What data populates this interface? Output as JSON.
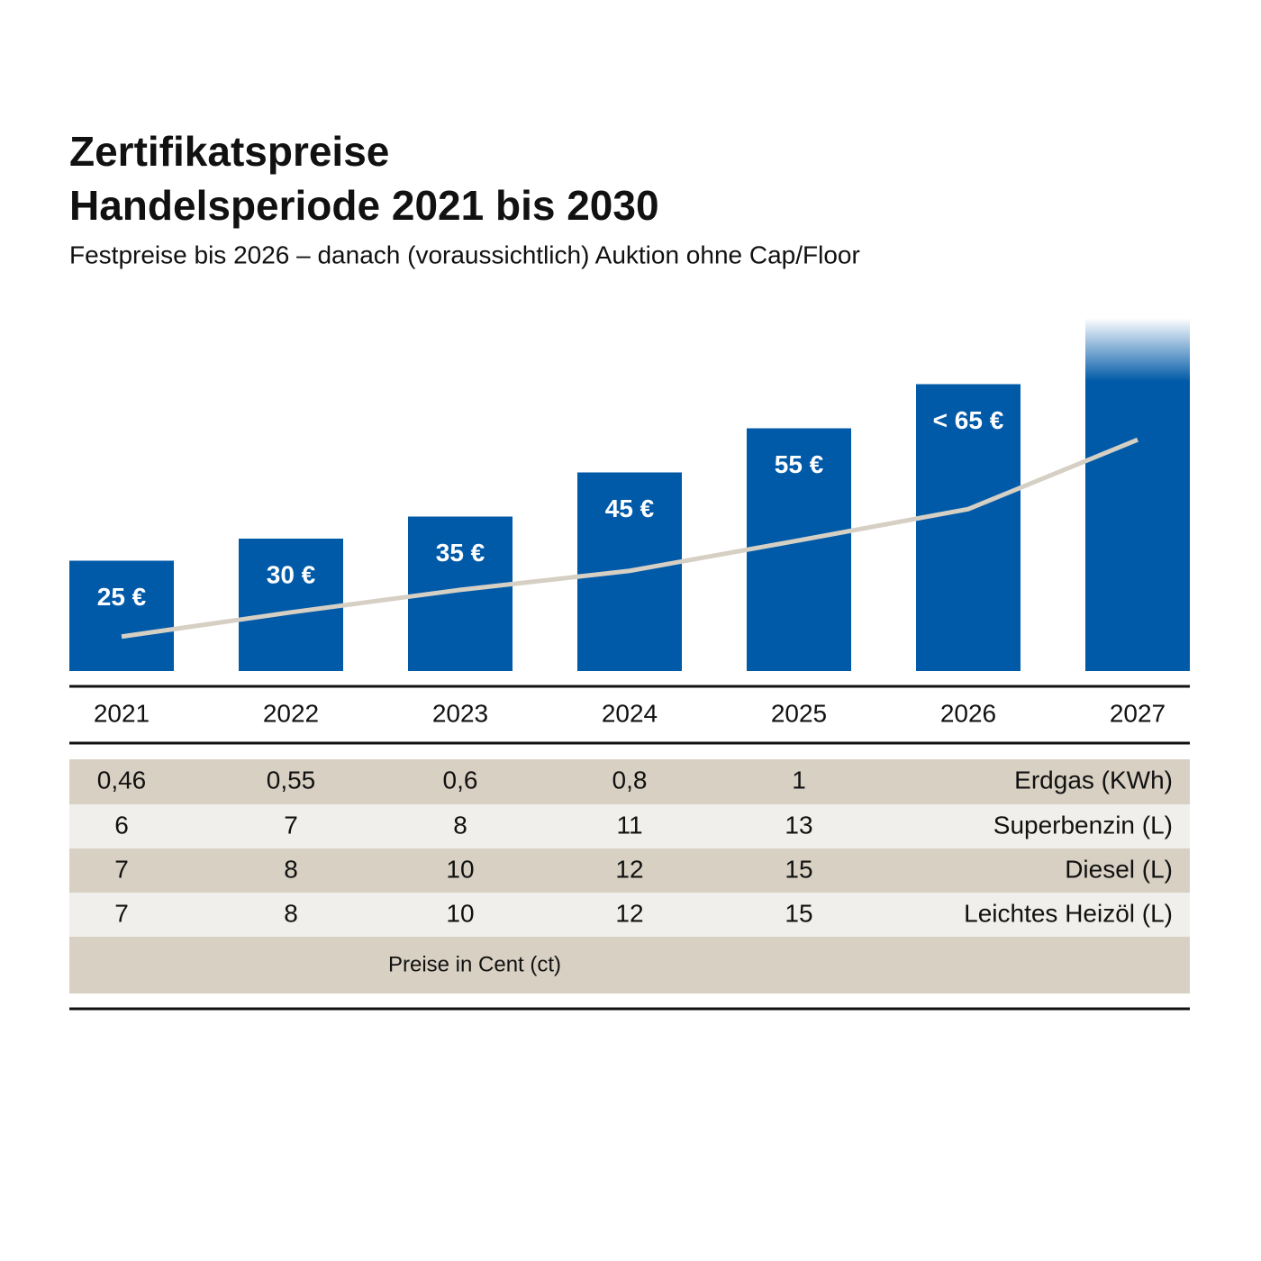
{
  "chart_data": {
    "type": "bar",
    "title": [
      "Zertifikatspreise",
      "Handelsperiode 2021 bis 2030"
    ],
    "subtitle": "Festpreise bis 2026 – danach (voraussichtlich) Auktion ohne Cap/Floor",
    "categories": [
      "2021",
      "2022",
      "2023",
      "2024",
      "2025",
      "2026",
      "2027"
    ],
    "values": [
      25,
      30,
      35,
      45,
      55,
      65,
      80
    ],
    "value_labels": [
      "25 €",
      "30 €",
      "35 €",
      "45 €",
      "55 €",
      "< 65 €",
      null
    ],
    "color": "#005aa8",
    "ylim": [
      0,
      80
    ],
    "overlay": {
      "type": "line",
      "color": "#d6cfc4",
      "values": [
        7.8,
        13.3,
        18.4,
        22.7,
        29.6,
        36.7,
        52.4
      ]
    }
  },
  "table": {
    "rows": [
      {
        "label": "Erdgas (KWh)",
        "cells": [
          "0,46",
          "0,55",
          "0,6",
          "0,8",
          "1"
        ]
      },
      {
        "label": "Superbenzin (L)",
        "cells": [
          "6",
          "7",
          "8",
          "11",
          "13"
        ]
      },
      {
        "label": "Diesel (L)",
        "cells": [
          "7",
          "8",
          "10",
          "12",
          "15"
        ]
      },
      {
        "label": "Leichtes Heizöl (L)",
        "cells": [
          "7",
          "8",
          "10",
          "12",
          "15"
        ]
      }
    ],
    "footer": "Preise in Cent (ct)"
  }
}
